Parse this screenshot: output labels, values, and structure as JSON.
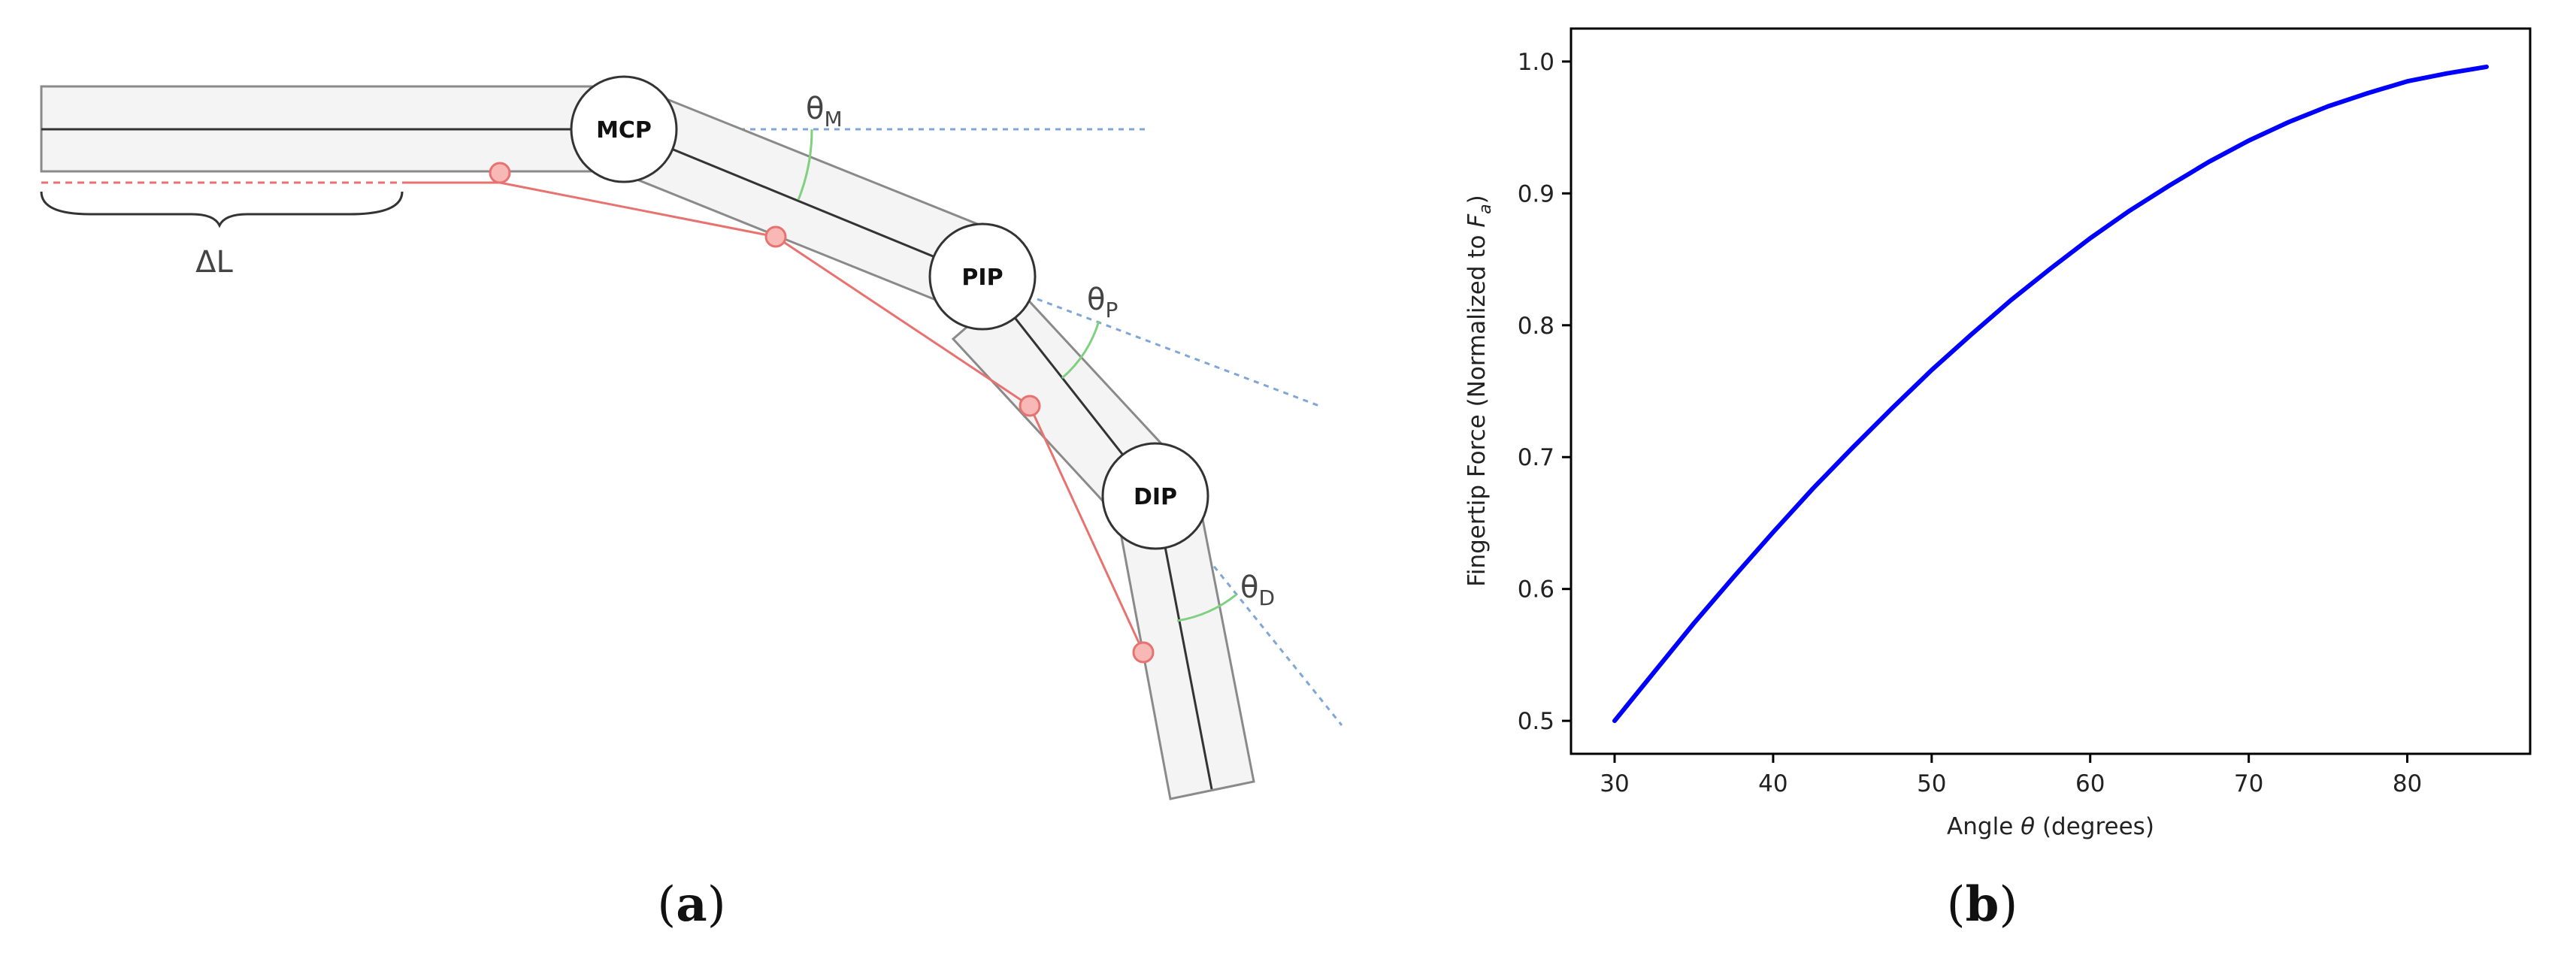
{
  "panel_a": {
    "label_open": "(",
    "label_letter": "a",
    "label_close": ")",
    "joints": {
      "mcp": "MCP",
      "pip": "PIP",
      "dip": "DIP"
    },
    "angles": {
      "mcp": {
        "symbol": "θ",
        "sub": "M"
      },
      "pip": {
        "symbol": "θ",
        "sub": "P"
      },
      "dip": {
        "symbol": "θ",
        "sub": "D"
      }
    },
    "displacement_label": "ΔL",
    "colors": {
      "bone_fill": "#f4f4f4",
      "bone_stroke": "#8a8a8a",
      "tendon": "#e8726f",
      "pulley_fill": "#f7b8b6",
      "reference_line": "#7fa6d6",
      "angle_arc": "#7fd07f"
    }
  },
  "panel_b": {
    "label_open": "(",
    "label_letter": "b",
    "label_close": ")",
    "chart_data": {
      "type": "line",
      "xlabel_prefix": "Angle ",
      "xlabel_symbol": "θ",
      "xlabel_suffix": " (degrees)",
      "ylabel_prefix": "Fingertip Force (Normalized to ",
      "ylabel_symbol": "F",
      "ylabel_sub": "a",
      "ylabel_suffix": ")",
      "xlim": [
        27.25,
        87.75
      ],
      "ylim": [
        0.475,
        1.025
      ],
      "xticks": [
        30,
        40,
        50,
        60,
        70,
        80
      ],
      "yticks": [
        0.5,
        0.6,
        0.7,
        0.8,
        0.9,
        1.0
      ],
      "ytick_labels": [
        "0.5",
        "0.6",
        "0.7",
        "0.8",
        "0.9",
        "1.0"
      ],
      "series": [
        {
          "color": "#0000ff",
          "x": [
            30,
            32.5,
            35,
            37.5,
            40,
            42.5,
            45,
            47.5,
            50,
            52.5,
            55,
            57.5,
            60,
            62.5,
            65,
            67.5,
            70,
            72.5,
            75,
            77.5,
            80,
            82.5,
            85
          ],
          "y": [
            0.5,
            0.537,
            0.574,
            0.609,
            0.643,
            0.676,
            0.707,
            0.737,
            0.766,
            0.793,
            0.819,
            0.843,
            0.866,
            0.887,
            0.906,
            0.924,
            0.94,
            0.954,
            0.966,
            0.976,
            0.985,
            0.991,
            0.996
          ]
        }
      ]
    }
  }
}
